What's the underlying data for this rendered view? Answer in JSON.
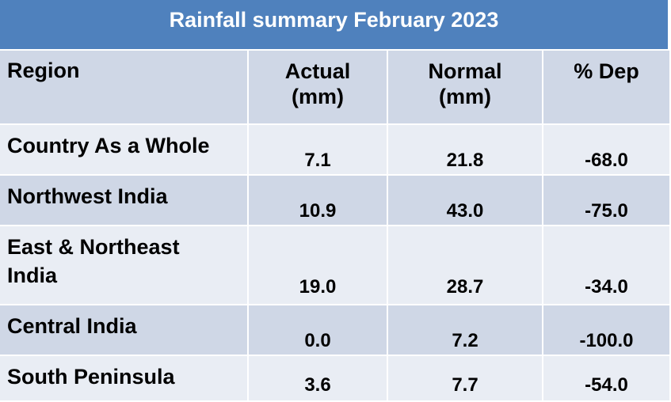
{
  "title": "Rainfall summary February 2023",
  "headers": {
    "region": "Region",
    "actual": "Actual\n(mm)",
    "actual_line1": "Actual",
    "actual_line2": "(mm)",
    "normal_line1": "Normal",
    "normal_line2": "(mm)",
    "dep": "% Dep"
  },
  "rows": [
    {
      "region": "Country As a Whole",
      "actual": "7.1",
      "normal": "21.8",
      "dep": "-68.0"
    },
    {
      "region": "Northwest India",
      "actual": "10.9",
      "normal": "43.0",
      "dep": "-75.0"
    },
    {
      "region_line1": "East & Northeast",
      "region_line2": "India",
      "actual": "19.0",
      "normal": "28.7",
      "dep": "-34.0"
    },
    {
      "region": "Central India",
      "actual": "0.0",
      "normal": "7.2",
      "dep": "-100.0"
    },
    {
      "region": "South Peninsula",
      "actual": "3.6",
      "normal": "7.7",
      "dep": "-54.0"
    }
  ],
  "colors": {
    "title_bg": "#4f81bd",
    "band_dark": "#cfd7e6",
    "band_light": "#e9edf4"
  }
}
